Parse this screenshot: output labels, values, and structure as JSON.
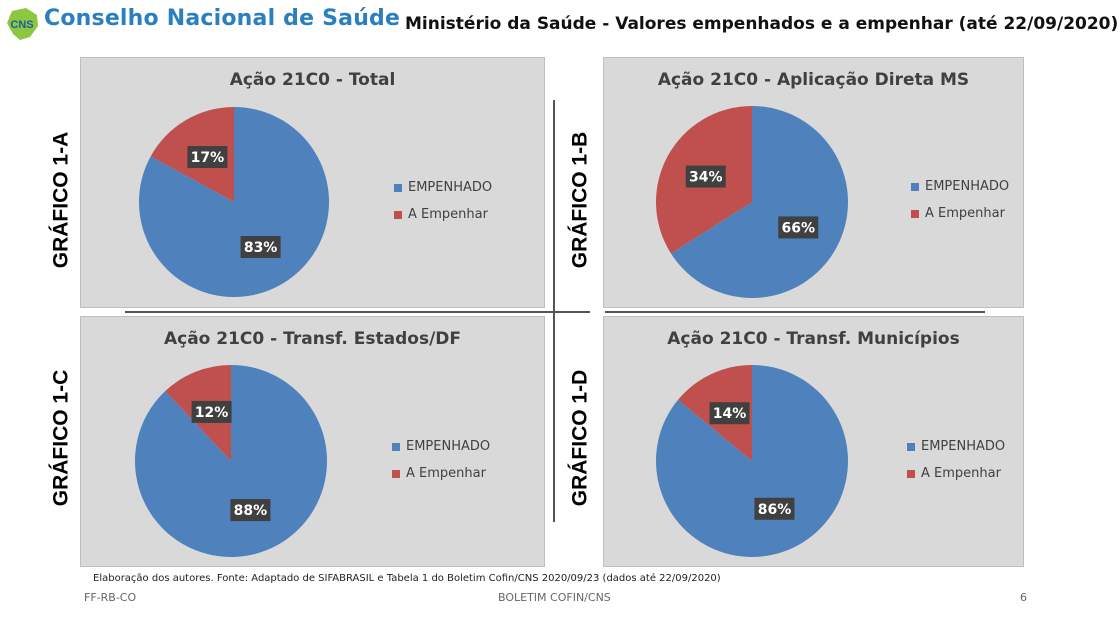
{
  "header": {
    "logo_text": "CNS",
    "org_name": "Conselho Nacional de Saúde",
    "title": "Ministério da Saúde - Valores empenhados e a empenhar (até 22/09/2020)"
  },
  "colors": {
    "empenhado": "#4f81bd",
    "a_empenhar": "#c0504d",
    "panel_bg": "#d9d9d9"
  },
  "chart_data": [
    {
      "type": "pie",
      "side_label": "GRÁFICO 1-A",
      "title": "Ação 21C0 - Total",
      "slices": [
        {
          "label": "EMPENHADO",
          "value": 83,
          "display": "83%"
        },
        {
          "label": "A Empenhar",
          "value": 17,
          "display": "17%"
        }
      ]
    },
    {
      "type": "pie",
      "side_label": "GRÁFICO 1-B",
      "title": "Ação 21C0 - Aplicação Direta MS",
      "slices": [
        {
          "label": "EMPENHADO",
          "value": 66,
          "display": "66%"
        },
        {
          "label": "A Empenhar",
          "value": 34,
          "display": "34%"
        }
      ]
    },
    {
      "type": "pie",
      "side_label": "GRÁFICO 1-C",
      "title": "Ação 21C0 - Transf. Estados/DF",
      "slices": [
        {
          "label": "EMPENHADO",
          "value": 88,
          "display": "88%"
        },
        {
          "label": "A Empenhar",
          "value": 12,
          "display": "12%"
        }
      ]
    },
    {
      "type": "pie",
      "side_label": "GRÁFICO 1-D",
      "title": "Ação 21C0 - Transf. Municípios",
      "slices": [
        {
          "label": "EMPENHADO",
          "value": 86,
          "display": "86%"
        },
        {
          "label": "A Empenhar",
          "value": 14,
          "display": "14%"
        }
      ]
    }
  ],
  "footnote": "Elaboração dos autores. Fonte: Adaptado de SIFABRASIL e Tabela 1 do Boletim Cofin/CNS 2020/09/23 (dados até 22/09/2020)",
  "footer": {
    "left": "FF-RB-CO",
    "center": "BOLETIM COFIN/CNS",
    "page": "6"
  }
}
